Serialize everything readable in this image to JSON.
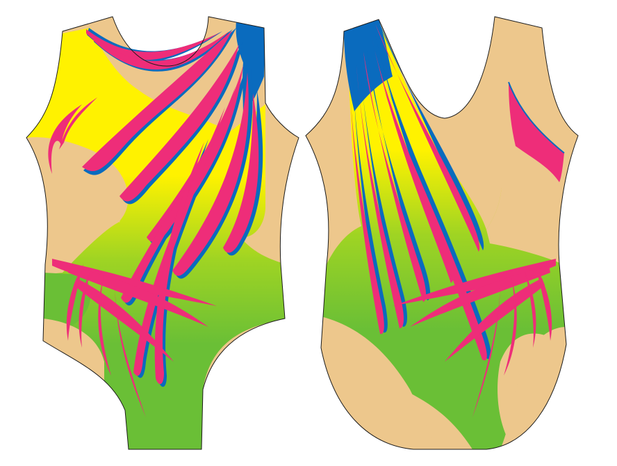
{
  "palette": {
    "skin": "#EDC78C",
    "yellow": "#FFF200",
    "lime": "#9FD423",
    "green": "#6ABF36",
    "pink": "#EE2D79",
    "blue": "#0A6BBE",
    "outline": "#1A1A1A",
    "background": "#FFFFFF"
  },
  "views": [
    {
      "id": "front"
    },
    {
      "id": "back"
    }
  ]
}
